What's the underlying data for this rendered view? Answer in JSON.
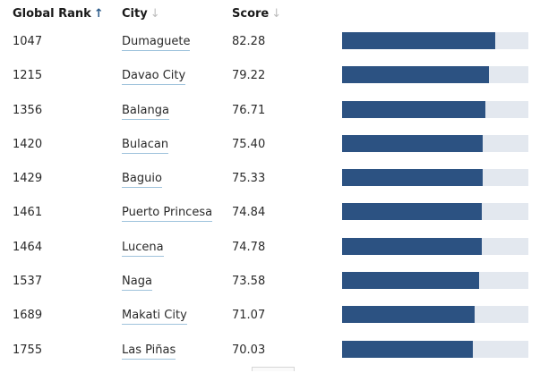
{
  "header": {
    "rank_label": "Global Rank",
    "city_label": "City",
    "score_label": "Score",
    "rank_sort_icon": "arrow-up-icon",
    "city_sort_icon": "arrow-down-icon",
    "score_sort_icon": "arrow-down-icon"
  },
  "colors": {
    "bar_fill": "#2c5282",
    "bar_track": "#e3e8ef",
    "link_underline": "#9fc3dc",
    "sort_active": "#2b5a8a",
    "sort_inactive": "#bdbdbd"
  },
  "rows": [
    {
      "rank": "1047",
      "city": "Dumaguete",
      "score": "82.28",
      "bar_fraction": 0.82
    },
    {
      "rank": "1215",
      "city": "Davao City",
      "score": "79.22",
      "bar_fraction": 0.79
    },
    {
      "rank": "1356",
      "city": "Balanga",
      "score": "76.71",
      "bar_fraction": 0.767
    },
    {
      "rank": "1420",
      "city": "Bulacan",
      "score": "75.40",
      "bar_fraction": 0.754
    },
    {
      "rank": "1429",
      "city": "Baguio",
      "score": "75.33",
      "bar_fraction": 0.753
    },
    {
      "rank": "1461",
      "city": "Puerto Princesa",
      "score": "74.84",
      "bar_fraction": 0.748
    },
    {
      "rank": "1464",
      "city": "Lucena",
      "score": "74.78",
      "bar_fraction": 0.748
    },
    {
      "rank": "1537",
      "city": "Naga",
      "score": "73.58",
      "bar_fraction": 0.736
    },
    {
      "rank": "1689",
      "city": "Makati City",
      "score": "71.07",
      "bar_fraction": 0.711
    },
    {
      "rank": "1755",
      "city": "Las Piñas",
      "score": "70.03",
      "bar_fraction": 0.7
    }
  ]
}
